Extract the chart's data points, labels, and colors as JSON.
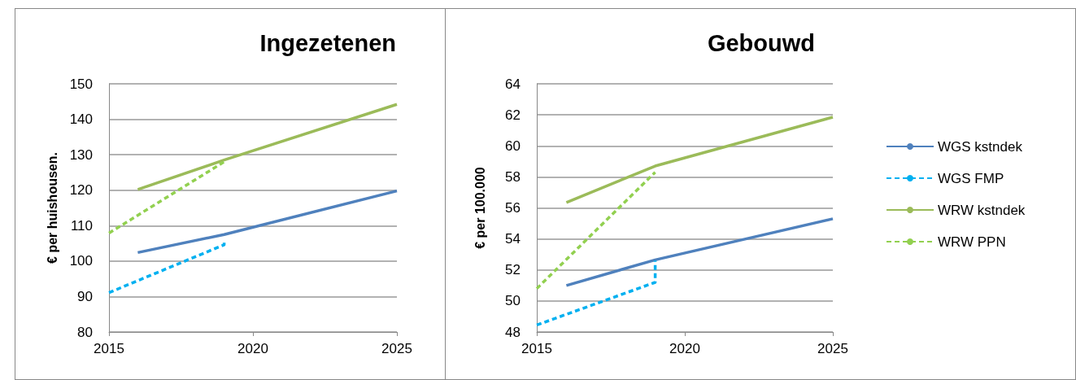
{
  "chart_data": [
    {
      "type": "line",
      "title": "Ingezetenen",
      "ylabel": "€ per huishousen.",
      "xlim": [
        2015,
        2025
      ],
      "xticks": [
        2015,
        2020,
        2025
      ],
      "ylim": [
        80,
        150
      ],
      "yticks": [
        80,
        90,
        100,
        110,
        120,
        130,
        140,
        150
      ],
      "grid": "y",
      "legend": false,
      "marker": "none",
      "series": [
        {
          "color": "#4f81bd",
          "line_style": "solid",
          "x": [
            2016,
            2019,
            2025
          ],
          "values": [
            102.4,
            107.5,
            119.8
          ]
        },
        {
          "color": "#00b0f0",
          "line_style": "dashed",
          "x": [
            2015,
            2019,
            2019
          ],
          "values": [
            91.1,
            104.6,
            106
          ]
        },
        {
          "color": "#9bbb59",
          "line_style": "solid",
          "x": [
            2016,
            2019,
            2025
          ],
          "values": [
            120.2,
            128.5,
            144.2
          ]
        },
        {
          "color": "#92d050",
          "line_style": "dashed",
          "x": [
            2015,
            2019
          ],
          "values": [
            107.9,
            128
          ]
        }
      ]
    },
    {
      "type": "line",
      "title": "Gebouwd",
      "ylabel": "€ per 100.000",
      "xlim": [
        2015,
        2025
      ],
      "xticks": [
        2015,
        2020,
        2025
      ],
      "ylim": [
        48,
        64
      ],
      "yticks": [
        48,
        50,
        52,
        54,
        56,
        58,
        60,
        62,
        64
      ],
      "grid": "y",
      "legend": "right",
      "marker": "none",
      "series": [
        {
          "name": "WGS kstndek",
          "color": "#4f81bd",
          "line_style": "solid",
          "x": [
            2016,
            2019,
            2025
          ],
          "values": [
            51.0,
            52.65,
            55.3
          ]
        },
        {
          "name": "WGS FMP",
          "color": "#00b0f0",
          "line_style": "dashed",
          "x": [
            2015,
            2019,
            2019
          ],
          "values": [
            48.45,
            51.2,
            52.6
          ]
        },
        {
          "name": "WRW kstndek",
          "color": "#9bbb59",
          "line_style": "solid",
          "x": [
            2016,
            2019,
            2025
          ],
          "values": [
            56.35,
            58.7,
            61.85
          ]
        },
        {
          "name": "WRW PPN",
          "color": "#92d050",
          "line_style": "dashed",
          "x": [
            2015,
            2019
          ],
          "values": [
            50.8,
            58.3
          ]
        }
      ]
    }
  ]
}
